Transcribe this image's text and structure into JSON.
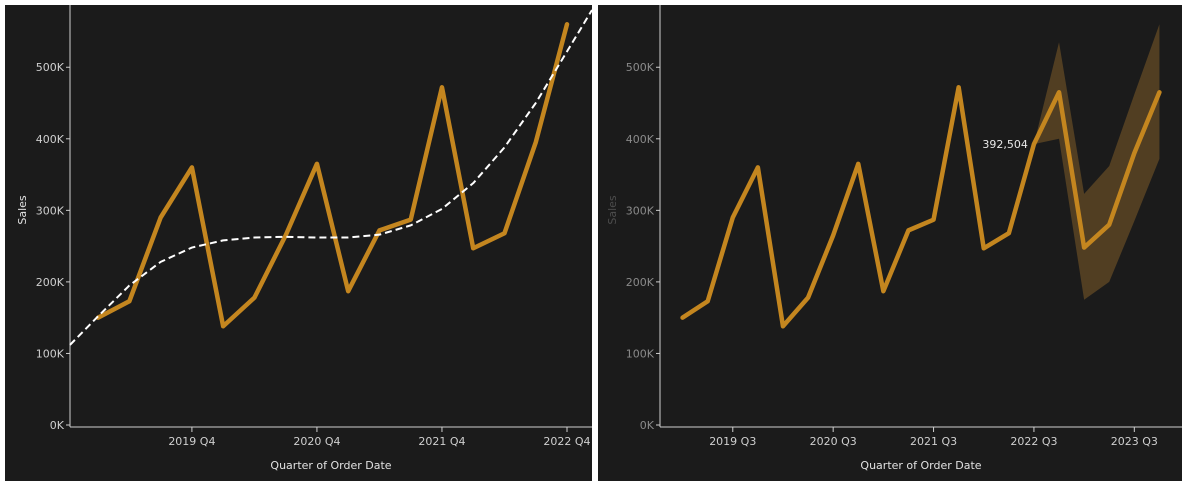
{
  "chart_data": [
    {
      "type": "line",
      "xlabel": "Quarter of Order Date",
      "ylabel": "Sales",
      "ylim": [
        0,
        580000
      ],
      "y_ticks": [
        0,
        100000,
        200000,
        300000,
        400000,
        500000
      ],
      "y_tick_labels": [
        "0K",
        "100K",
        "200K",
        "300K",
        "400K",
        "500K"
      ],
      "x_range": [
        -0.9,
        15.8
      ],
      "x_ticks": [
        3,
        7,
        11,
        15
      ],
      "x_tick_labels": [
        "2019 Q4",
        "2020 Q4",
        "2021 Q4",
        "2022 Q4"
      ],
      "series": [
        {
          "kind": "line",
          "values": [
            150000,
            173000,
            290000,
            360000,
            138000,
            178000,
            265000,
            365000,
            187000,
            272000,
            287000,
            472000,
            247000,
            268000,
            395000,
            560000
          ]
        },
        {
          "kind": "trend",
          "style": "dashed",
          "x": [
            -0.9,
            0,
            1,
            2,
            3,
            4,
            5,
            6,
            7,
            8,
            9,
            10,
            11,
            12,
            13,
            14,
            15,
            15.8
          ],
          "values": [
            112000,
            152000,
            195000,
            228000,
            248000,
            258000,
            262000,
            263000,
            262000,
            262000,
            266000,
            279000,
            302000,
            338000,
            388000,
            450000,
            522000,
            580000
          ]
        }
      ],
      "colors": {
        "line": "#c4861f",
        "trend": "#ffffff",
        "background": "#1b1b1b",
        "axis": "#cfcfcf"
      },
      "grid": false
    },
    {
      "type": "line",
      "xlabel": "Quarter of Order Date",
      "ylabel": "Sales",
      "ylim": [
        0,
        580000
      ],
      "y_ticks": [
        0,
        100000,
        200000,
        300000,
        400000,
        500000
      ],
      "y_tick_labels": [
        "0K",
        "100K",
        "200K",
        "300K",
        "400K",
        "500K"
      ],
      "x_range": [
        -0.9,
        19.9
      ],
      "x_ticks": [
        2,
        6,
        10,
        14,
        18
      ],
      "x_tick_labels": [
        "2019 Q3",
        "2020 Q3",
        "2021 Q3",
        "2022 Q3",
        "2023 Q3"
      ],
      "series": [
        {
          "kind": "line",
          "x": [
            0,
            1,
            2,
            3,
            4,
            5,
            6,
            7,
            8,
            9,
            10,
            11,
            12,
            13,
            14,
            15,
            16,
            17,
            18,
            19
          ],
          "values": [
            150000,
            173000,
            290000,
            360000,
            138000,
            178000,
            265000,
            365000,
            187000,
            272000,
            287000,
            472000,
            247000,
            268000,
            392504,
            465000,
            248000,
            280000,
            380000,
            465000
          ]
        },
        {
          "kind": "forecast-band",
          "x": [
            14,
            15,
            16,
            17,
            18,
            19
          ],
          "upper": [
            392504,
            535000,
            323000,
            362000,
            462000,
            560000
          ],
          "lower": [
            392504,
            400000,
            175000,
            200000,
            285000,
            372000
          ]
        }
      ],
      "annotation": {
        "x": 14,
        "value": 392504,
        "label": "392,504"
      },
      "colors": {
        "line": "#c4861f",
        "band": "#5a4423",
        "background": "#1b1b1b",
        "axis": "#cfcfcf"
      },
      "grid": false
    }
  ]
}
